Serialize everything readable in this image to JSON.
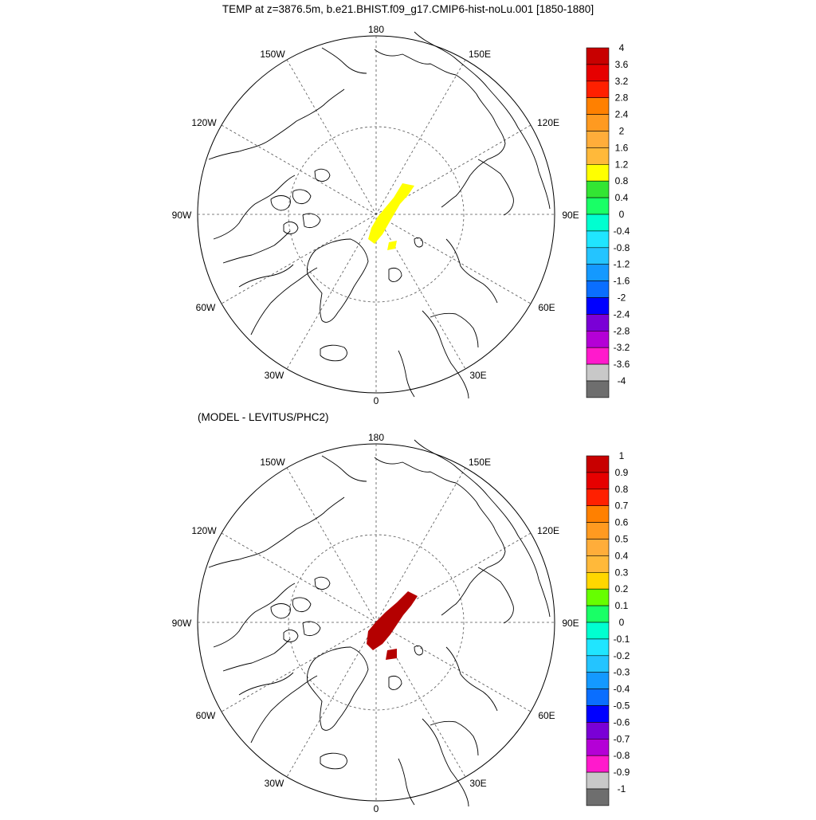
{
  "figure": {
    "title": "TEMP at z=3876.5m, b.e21.BHIST.f09_g17.CMIP6-hist-noLu.001 [1850-1880]",
    "subtitle": "(MODEL - LEVITUS/PHC2)"
  },
  "map_labels": {
    "lon_180": "180",
    "lon_150w": "150W",
    "lon_150e": "150E",
    "lon_120w": "120W",
    "lon_120e": "120E",
    "lon_90w": "90W",
    "lon_90e": "90E",
    "lon_60w": "60W",
    "lon_60e": "60E",
    "lon_30w": "30W",
    "lon_30e": "30E",
    "lon_0": "0"
  },
  "legend_top": {
    "labels": [
      "4",
      "3.6",
      "3.2",
      "2.8",
      "2.4",
      "2",
      "1.6",
      "1.2",
      "0.8",
      "0.4",
      "0",
      "-0.4",
      "-0.8",
      "-1.2",
      "-1.6",
      "-2",
      "-2.4",
      "-2.8",
      "-3.2",
      "-3.6",
      "-4"
    ],
    "colors": [
      "#c80000",
      "#e60000",
      "#ff2000",
      "#ff8000",
      "#ff9a20",
      "#ffad3a",
      "#ffb93a",
      "#ffff00",
      "#33e533",
      "#19ff66",
      "#00ffd0",
      "#20e5ff",
      "#24c4ff",
      "#1499ff",
      "#0a6eff",
      "#0000ff",
      "#7a00d6",
      "#b400d6",
      "#ff1acc",
      "#c8c8c8",
      "#6e6e6e"
    ]
  },
  "legend_bottom": {
    "labels": [
      "1",
      "0.9",
      "0.8",
      "0.7",
      "0.6",
      "0.5",
      "0.4",
      "0.3",
      "0.2",
      "0.1",
      "0",
      "-0.1",
      "-0.2",
      "-0.3",
      "-0.4",
      "-0.5",
      "-0.6",
      "-0.7",
      "-0.8",
      "-0.9",
      "-1"
    ],
    "colors": [
      "#c80000",
      "#e60000",
      "#ff2000",
      "#ff8000",
      "#ff9a20",
      "#ffad3a",
      "#ffb93a",
      "#ffd700",
      "#66ff00",
      "#19ff66",
      "#00ffd0",
      "#20e5ff",
      "#24c4ff",
      "#1499ff",
      "#0a6eff",
      "#0000ff",
      "#7a00d6",
      "#b400d6",
      "#ff1acc",
      "#c8c8c8",
      "#6e6e6e"
    ]
  },
  "anomaly_fill": {
    "top_color": "#ffff00",
    "bottom_color": "#b40000"
  }
}
